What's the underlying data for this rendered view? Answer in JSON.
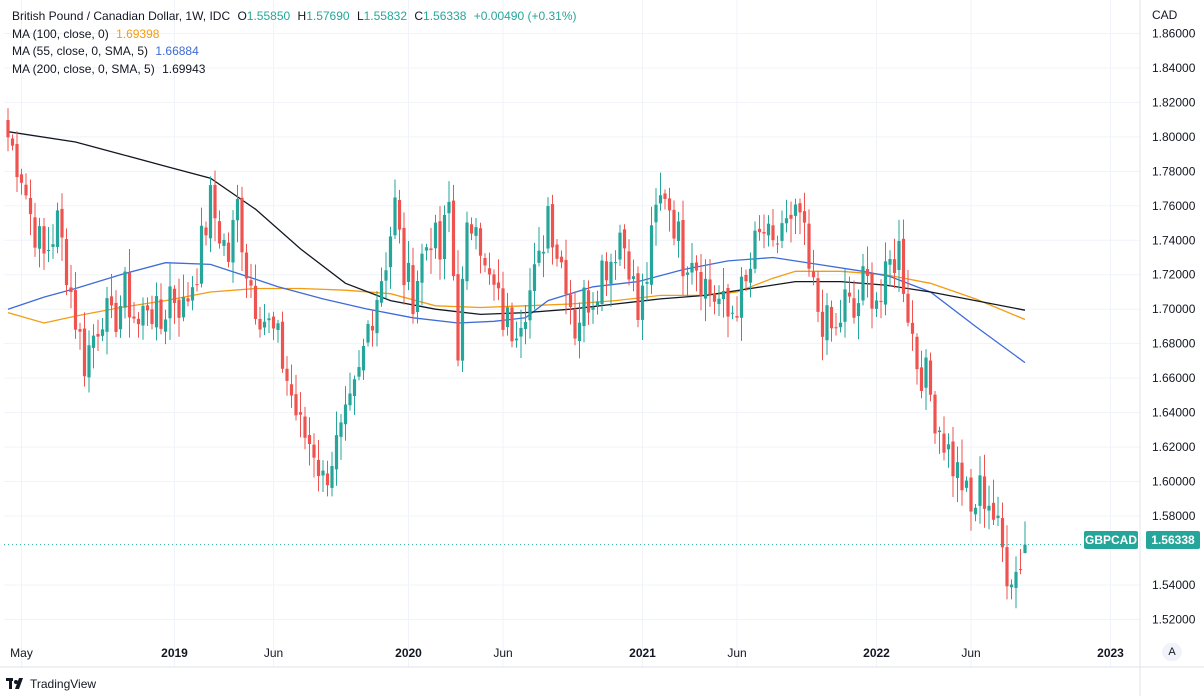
{
  "legend": {
    "title": "British Pound / Canadian Dollar, 1W, IDC",
    "o_label": "O",
    "o_value": "1.55850",
    "h_label": "H",
    "h_value": "1.57690",
    "l_label": "L",
    "l_value": "1.55832",
    "c_label": "C",
    "c_value": "1.56338",
    "change": "+0.00490 (+0.31%)",
    "ma100_label": "MA (100, close, 0)",
    "ma100_value": "1.69398",
    "ma55_label": "MA (55, close, 0, SMA, 5)",
    "ma55_value": "1.66884",
    "ma200_label": "MA (200, close, 0, SMA, 5)",
    "ma200_value": "1.69943"
  },
  "currency_label": "CAD",
  "symbol_tag": "GBPCAD",
  "price_tag": "1.56338",
  "auto_button": "A",
  "footer_brand": "TradingView",
  "colors": {
    "up": "#26a69a",
    "down": "#ef5350",
    "ma100": "#f39c12",
    "ma55": "#3d6bd9",
    "ma200": "#131722",
    "grid": "#f0f3fa"
  },
  "chart_data": {
    "type": "candlestick",
    "title": "British Pound / Canadian Dollar, 1W, IDC",
    "ylabel": "CAD",
    "ylim": [
      1.504,
      1.862
    ],
    "y_ticks": [
      "1.86000",
      "1.84000",
      "1.82000",
      "1.80000",
      "1.78000",
      "1.76000",
      "1.74000",
      "1.72000",
      "1.70000",
      "1.68000",
      "1.66000",
      "1.64000",
      "1.62000",
      "1.60000",
      "1.58000",
      "1.54000",
      "1.52000"
    ],
    "x_ticks": [
      {
        "label": "May",
        "idx": 3
      },
      {
        "label": "2019",
        "idx": 37
      },
      {
        "label": "Jun",
        "idx": 59
      },
      {
        "label": "2020",
        "idx": 89
      },
      {
        "label": "Jun",
        "idx": 110
      },
      {
        "label": "2021",
        "idx": 141
      },
      {
        "label": "Jun",
        "idx": 162
      },
      {
        "label": "2022",
        "idx": 193
      },
      {
        "label": "Jun",
        "idx": 214
      },
      {
        "label": "2023",
        "idx": 245
      }
    ],
    "anchors": [
      [
        0,
        1.8
      ],
      [
        3,
        1.78
      ],
      [
        5,
        1.755
      ],
      [
        8,
        1.73
      ],
      [
        11,
        1.75
      ],
      [
        13,
        1.725
      ],
      [
        15,
        1.695
      ],
      [
        17,
        1.67
      ],
      [
        19,
        1.685
      ],
      [
        21,
        1.7
      ],
      [
        23,
        1.69
      ],
      [
        26,
        1.71
      ],
      [
        29,
        1.69
      ],
      [
        31,
        1.705
      ],
      [
        34,
        1.69
      ],
      [
        36,
        1.712
      ],
      [
        39,
        1.7
      ],
      [
        42,
        1.725
      ],
      [
        45,
        1.762
      ],
      [
        47,
        1.745
      ],
      [
        49,
        1.73
      ],
      [
        51,
        1.76
      ],
      [
        53,
        1.725
      ],
      [
        55,
        1.705
      ],
      [
        58,
        1.69
      ],
      [
        60,
        1.68
      ],
      [
        63,
        1.65
      ],
      [
        65,
        1.63
      ],
      [
        68,
        1.62
      ],
      [
        70,
        1.6
      ],
      [
        72,
        1.615
      ],
      [
        74,
        1.625
      ],
      [
        76,
        1.64
      ],
      [
        78,
        1.66
      ],
      [
        80,
        1.69
      ],
      [
        82,
        1.71
      ],
      [
        84,
        1.73
      ],
      [
        86,
        1.76
      ],
      [
        88,
        1.72
      ],
      [
        90,
        1.71
      ],
      [
        92,
        1.73
      ],
      [
        94,
        1.745
      ],
      [
        96,
        1.73
      ],
      [
        98,
        1.76
      ],
      [
        100,
        1.68
      ],
      [
        102,
        1.74
      ],
      [
        104,
        1.76
      ],
      [
        106,
        1.72
      ],
      [
        108,
        1.71
      ],
      [
        110,
        1.695
      ],
      [
        112,
        1.69
      ],
      [
        114,
        1.7
      ],
      [
        116,
        1.71
      ],
      [
        118,
        1.725
      ],
      [
        120,
        1.76
      ],
      [
        122,
        1.735
      ],
      [
        124,
        1.72
      ],
      [
        126,
        1.69
      ],
      [
        128,
        1.705
      ],
      [
        130,
        1.71
      ],
      [
        132,
        1.725
      ],
      [
        134,
        1.73
      ],
      [
        136,
        1.745
      ],
      [
        138,
        1.73
      ],
      [
        140,
        1.695
      ],
      [
        142,
        1.72
      ],
      [
        144,
        1.755
      ],
      [
        146,
        1.77
      ],
      [
        148,
        1.752
      ],
      [
        150,
        1.73
      ],
      [
        152,
        1.735
      ],
      [
        154,
        1.72
      ],
      [
        156,
        1.71
      ],
      [
        158,
        1.705
      ],
      [
        160,
        1.695
      ],
      [
        162,
        1.705
      ],
      [
        164,
        1.712
      ],
      [
        166,
        1.735
      ],
      [
        168,
        1.745
      ],
      [
        170,
        1.73
      ],
      [
        172,
        1.75
      ],
      [
        174,
        1.745
      ],
      [
        176,
        1.755
      ],
      [
        178,
        1.72
      ],
      [
        180,
        1.7
      ],
      [
        182,
        1.69
      ],
      [
        184,
        1.685
      ],
      [
        186,
        1.705
      ],
      [
        188,
        1.695
      ],
      [
        190,
        1.715
      ],
      [
        192,
        1.712
      ],
      [
        194,
        1.705
      ],
      [
        196,
        1.725
      ],
      [
        198,
        1.735
      ],
      [
        200,
        1.7
      ],
      [
        202,
        1.67
      ],
      [
        204,
        1.66
      ],
      [
        206,
        1.64
      ],
      [
        208,
        1.625
      ],
      [
        210,
        1.61
      ],
      [
        212,
        1.6
      ],
      [
        214,
        1.58
      ],
      [
        216,
        1.595
      ],
      [
        218,
        1.59
      ],
      [
        220,
        1.57
      ],
      [
        222,
        1.55
      ],
      [
        224,
        1.548
      ],
      [
        226,
        1.563
      ]
    ],
    "ma100": [
      [
        0,
        1.698
      ],
      [
        8,
        1.692
      ],
      [
        15,
        1.696
      ],
      [
        25,
        1.701
      ],
      [
        35,
        1.705
      ],
      [
        45,
        1.71
      ],
      [
        55,
        1.712
      ],
      [
        65,
        1.712
      ],
      [
        75,
        1.711
      ],
      [
        85,
        1.709
      ],
      [
        95,
        1.702
      ],
      [
        105,
        1.701
      ],
      [
        115,
        1.702
      ],
      [
        125,
        1.703
      ],
      [
        135,
        1.705
      ],
      [
        145,
        1.708
      ],
      [
        155,
        1.708
      ],
      [
        162,
        1.71
      ],
      [
        170,
        1.718
      ],
      [
        175,
        1.722
      ],
      [
        185,
        1.722
      ],
      [
        195,
        1.72
      ],
      [
        205,
        1.715
      ],
      [
        215,
        1.706
      ],
      [
        226,
        1.694
      ]
    ],
    "ma55": [
      [
        0,
        1.7
      ],
      [
        8,
        1.707
      ],
      [
        15,
        1.712
      ],
      [
        25,
        1.72
      ],
      [
        35,
        1.727
      ],
      [
        45,
        1.726
      ],
      [
        52,
        1.72
      ],
      [
        60,
        1.713
      ],
      [
        70,
        1.706
      ],
      [
        80,
        1.7
      ],
      [
        90,
        1.695
      ],
      [
        100,
        1.692
      ],
      [
        108,
        1.693
      ],
      [
        115,
        1.695
      ],
      [
        120,
        1.705
      ],
      [
        130,
        1.713
      ],
      [
        140,
        1.716
      ],
      [
        150,
        1.723
      ],
      [
        160,
        1.728
      ],
      [
        170,
        1.73
      ],
      [
        180,
        1.726
      ],
      [
        190,
        1.722
      ],
      [
        196,
        1.719
      ],
      [
        205,
        1.71
      ],
      [
        215,
        1.69
      ],
      [
        226,
        1.669
      ]
    ],
    "ma200": [
      [
        0,
        1.803
      ],
      [
        15,
        1.797
      ],
      [
        25,
        1.79
      ],
      [
        35,
        1.783
      ],
      [
        45,
        1.776
      ],
      [
        55,
        1.758
      ],
      [
        65,
        1.735
      ],
      [
        75,
        1.715
      ],
      [
        85,
        1.705
      ],
      [
        95,
        1.7
      ],
      [
        105,
        1.697
      ],
      [
        115,
        1.698
      ],
      [
        125,
        1.7
      ],
      [
        135,
        1.703
      ],
      [
        145,
        1.706
      ],
      [
        155,
        1.708
      ],
      [
        165,
        1.712
      ],
      [
        175,
        1.716
      ],
      [
        185,
        1.716
      ],
      [
        195,
        1.714
      ],
      [
        205,
        1.71
      ],
      [
        215,
        1.705
      ],
      [
        226,
        1.6994
      ]
    ],
    "last": {
      "open": 1.5585,
      "high": 1.5769,
      "low": 1.55832,
      "close": 1.56338
    }
  }
}
